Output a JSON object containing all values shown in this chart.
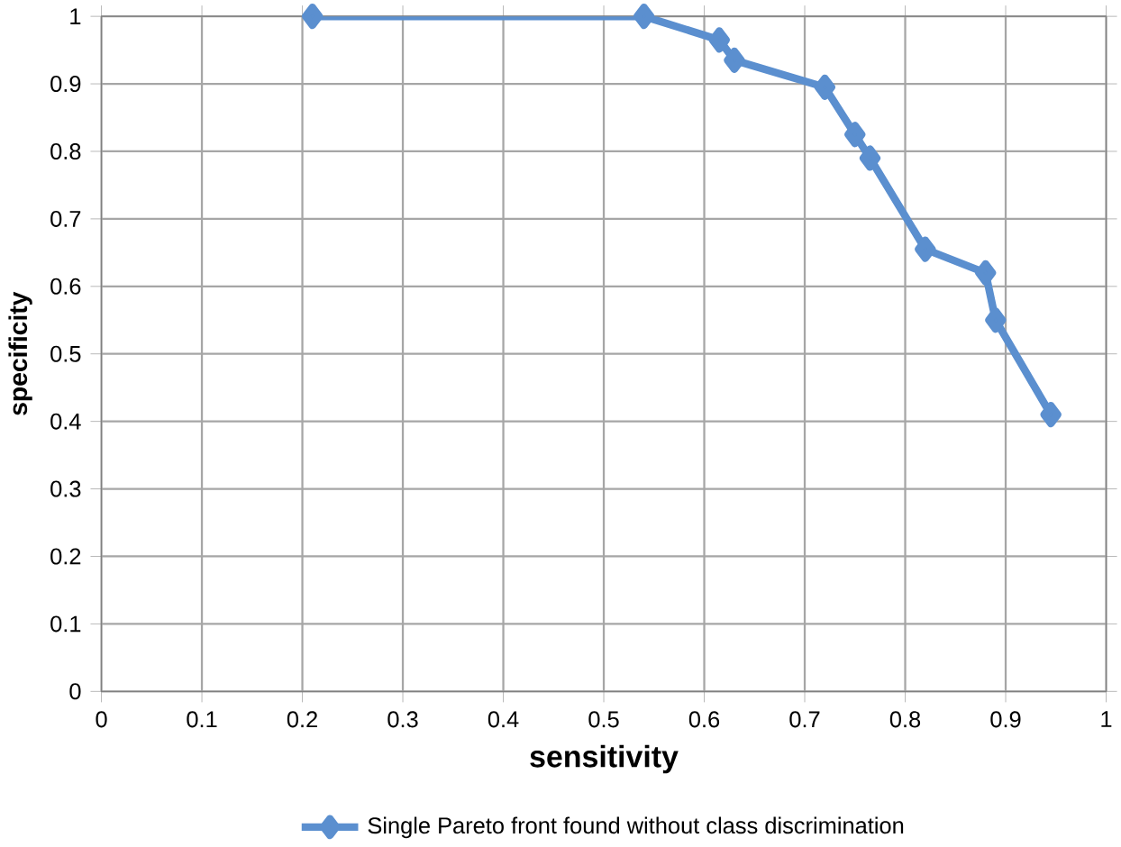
{
  "chart_data": {
    "type": "line",
    "xlabel": "sensitivity",
    "ylabel": "specificity",
    "xlim": [
      0,
      1
    ],
    "ylim": [
      0,
      1
    ],
    "xticks": [
      0,
      0.1,
      0.2,
      0.3,
      0.4,
      0.5,
      0.6,
      0.7,
      0.8,
      0.9,
      1
    ],
    "yticks": [
      0,
      0.1,
      0.2,
      0.3,
      0.4,
      0.5,
      0.6,
      0.7,
      0.8,
      0.9,
      1
    ],
    "grid": true,
    "legend": "bottom",
    "marker": "diamond",
    "line_style": "solid",
    "series": [
      {
        "name": "Single Pareto front found without class discrimination",
        "color": "#5b8fcf",
        "x": [
          0.21,
          0.54,
          0.615,
          0.63,
          0.72,
          0.75,
          0.765,
          0.82,
          0.88,
          0.89,
          0.945
        ],
        "values": [
          1.0,
          1.0,
          0.965,
          0.935,
          0.895,
          0.825,
          0.79,
          0.655,
          0.62,
          0.55,
          0.41
        ]
      }
    ]
  }
}
